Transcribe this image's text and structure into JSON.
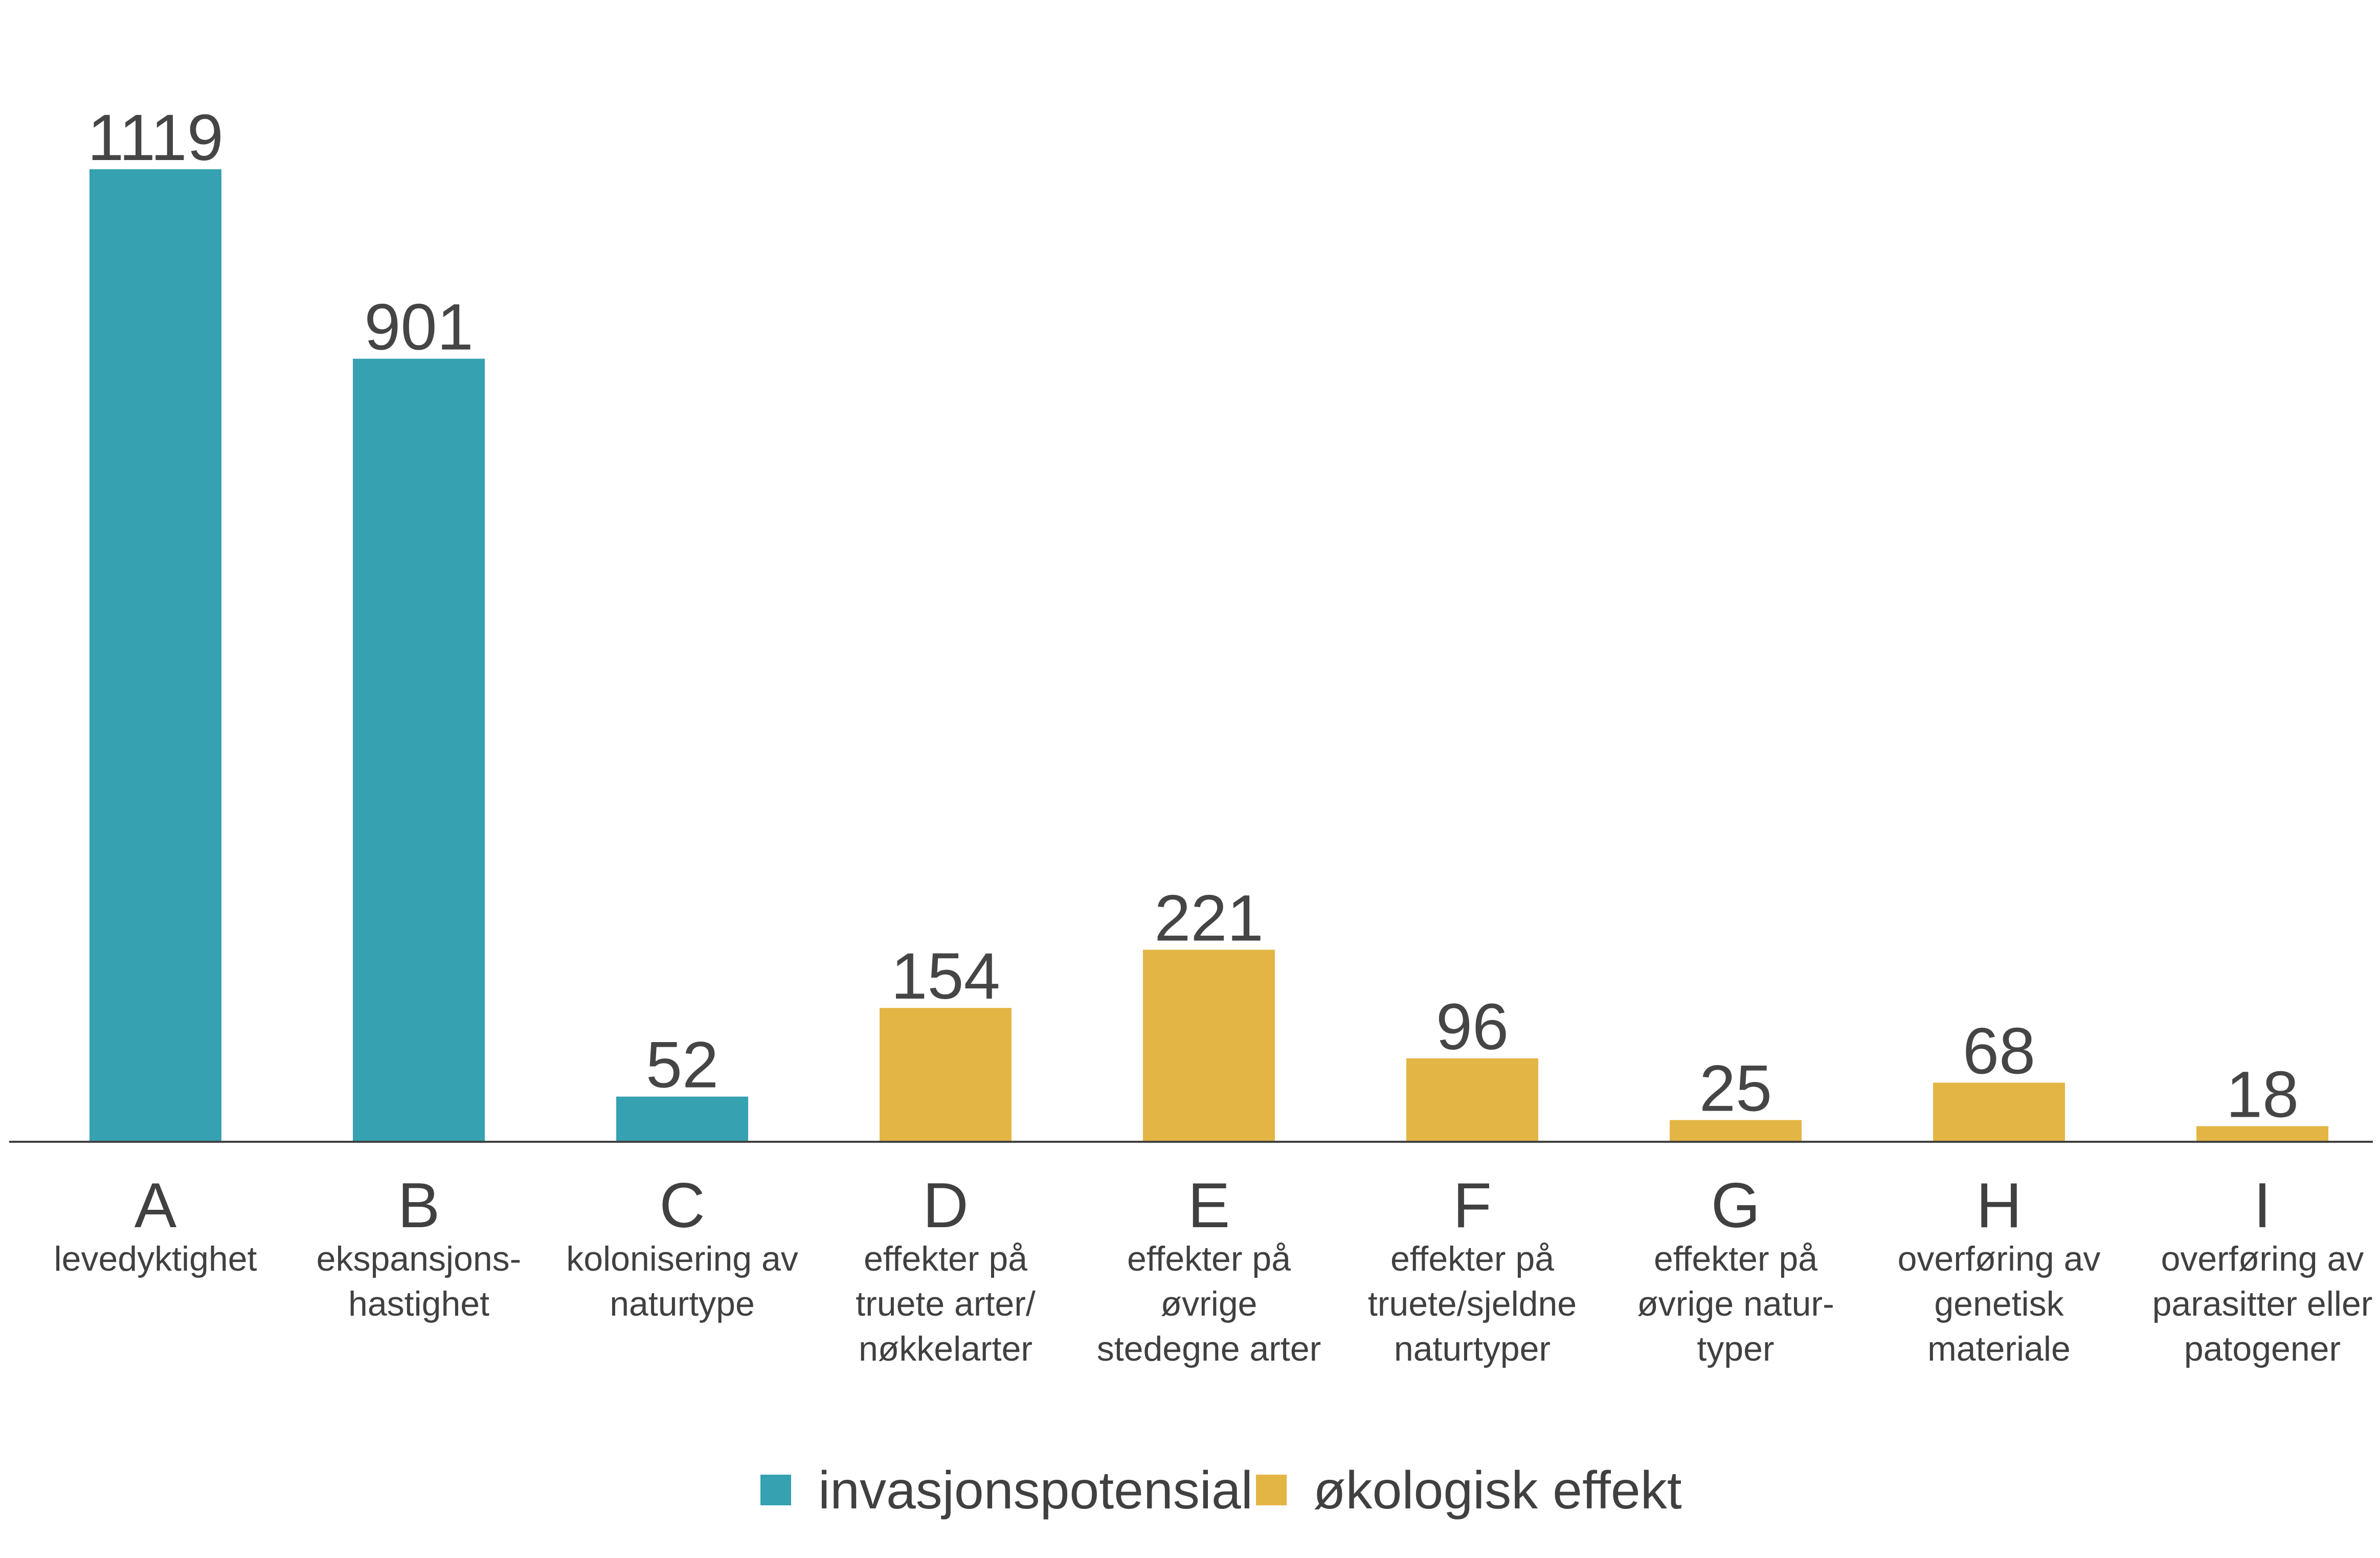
{
  "colors": {
    "invasion": "#35a1b1",
    "ecological": "#e3b545",
    "axis": "#404040",
    "text": "#404040"
  },
  "legend": {
    "items": [
      {
        "label": "invasjonspotensial",
        "color": "#35a1b1"
      },
      {
        "label": "økologisk effekt",
        "color": "#e3b545"
      }
    ]
  },
  "chart_data": {
    "type": "bar",
    "title": "",
    "xlabel": "",
    "ylabel": "",
    "ylim": [
      0,
      1119
    ],
    "grid": false,
    "legend_position": "bottom-center",
    "categories": [
      "A",
      "B",
      "C",
      "D",
      "E",
      "F",
      "G",
      "H",
      "I"
    ],
    "descriptions": [
      [
        "levedyktighet"
      ],
      [
        "ekspansjons-",
        "hastighet"
      ],
      [
        "kolonisering av",
        "naturtype"
      ],
      [
        "effekter på",
        "truete arter/",
        "nøkkelarter"
      ],
      [
        "effekter på",
        "øvrige",
        "stedegne arter"
      ],
      [
        "effekter på",
        "truete/sjeldne",
        "naturtyper"
      ],
      [
        "effekter på",
        "øvrige natur-",
        "typer"
      ],
      [
        "overføring av",
        "genetisk",
        "materiale"
      ],
      [
        "overføring av",
        "parasitter eller",
        "patogener"
      ]
    ],
    "values": [
      1119,
      901,
      52,
      154,
      221,
      96,
      25,
      68,
      18
    ],
    "groups": [
      "invasjonspotensial",
      "invasjonspotensial",
      "invasjonspotensial",
      "økologisk effekt",
      "økologisk effekt",
      "økologisk effekt",
      "økologisk effekt",
      "økologisk effekt",
      "økologisk effekt"
    ]
  }
}
